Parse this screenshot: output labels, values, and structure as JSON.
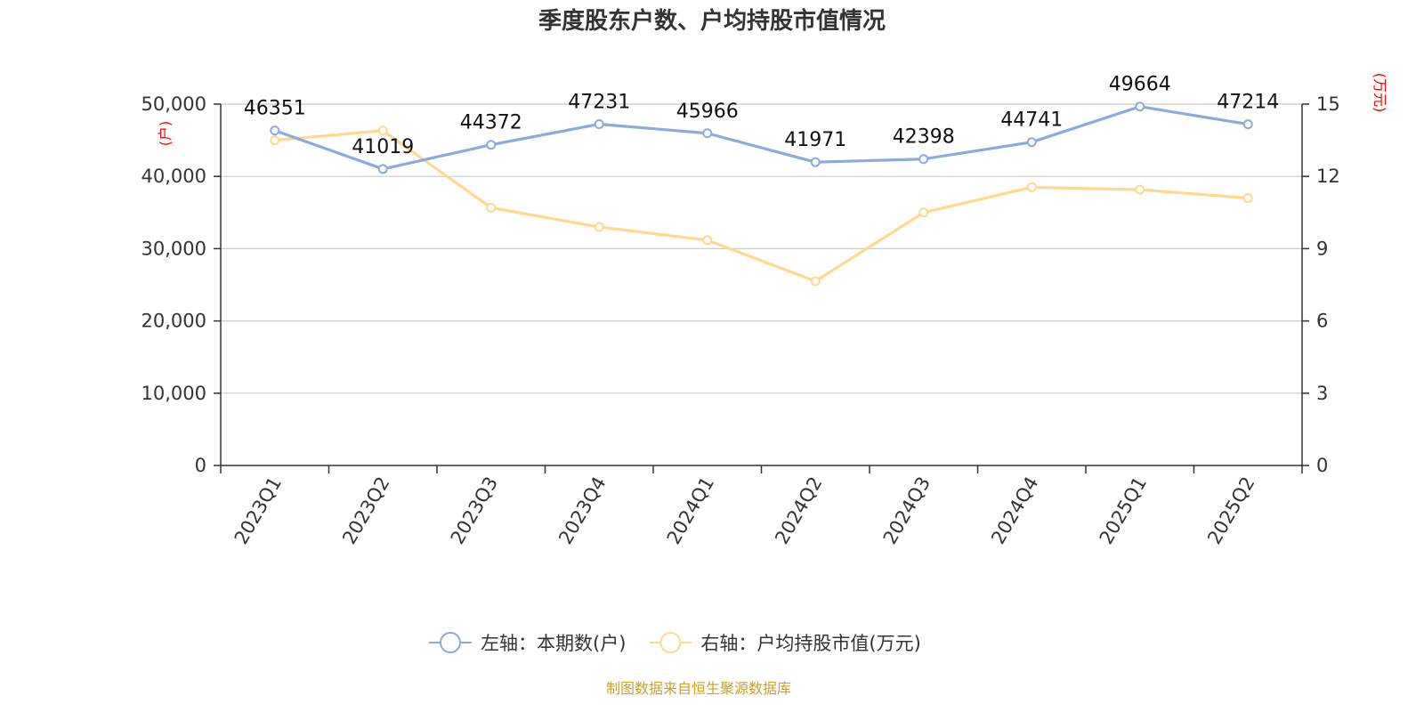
{
  "chart_data": {
    "type": "line",
    "title": "季度股东户数、户均持股市值情况",
    "categories": [
      "2023Q1",
      "2023Q2",
      "2023Q3",
      "2023Q4",
      "2024Q1",
      "2024Q2",
      "2024Q3",
      "2024Q4",
      "2025Q1",
      "2025Q2"
    ],
    "left_axis": {
      "unit": "(户)",
      "ylim": [
        0,
        50000
      ],
      "ticks": [
        "0",
        "10,000",
        "20,000",
        "30,000",
        "40,000",
        "50,000"
      ]
    },
    "right_axis": {
      "unit": "(万元)",
      "ylim": [
        0,
        15
      ],
      "ticks": [
        "0",
        "3",
        "6",
        "9",
        "12",
        "15"
      ]
    },
    "series": [
      {
        "name": "左轴：本期数(户)",
        "axis": "left",
        "color": "#8eaadb",
        "values": [
          46351,
          41019,
          44372,
          47231,
          45966,
          41971,
          42398,
          44741,
          49664,
          47214
        ],
        "labels": [
          "46351",
          "41019",
          "44372",
          "47231",
          "45966",
          "41971",
          "42398",
          "44741",
          "49664",
          "47214"
        ]
      },
      {
        "name": "右轴：户均持股市值(万元)",
        "axis": "right",
        "color": "#ffd98f",
        "values": [
          13.5,
          13.9,
          10.7,
          9.9,
          9.35,
          7.65,
          10.5,
          11.55,
          11.45,
          11.1
        ]
      }
    ],
    "grid": true,
    "legend": "bottom-center"
  },
  "source_note": "制图数据来自恒生聚源数据库"
}
